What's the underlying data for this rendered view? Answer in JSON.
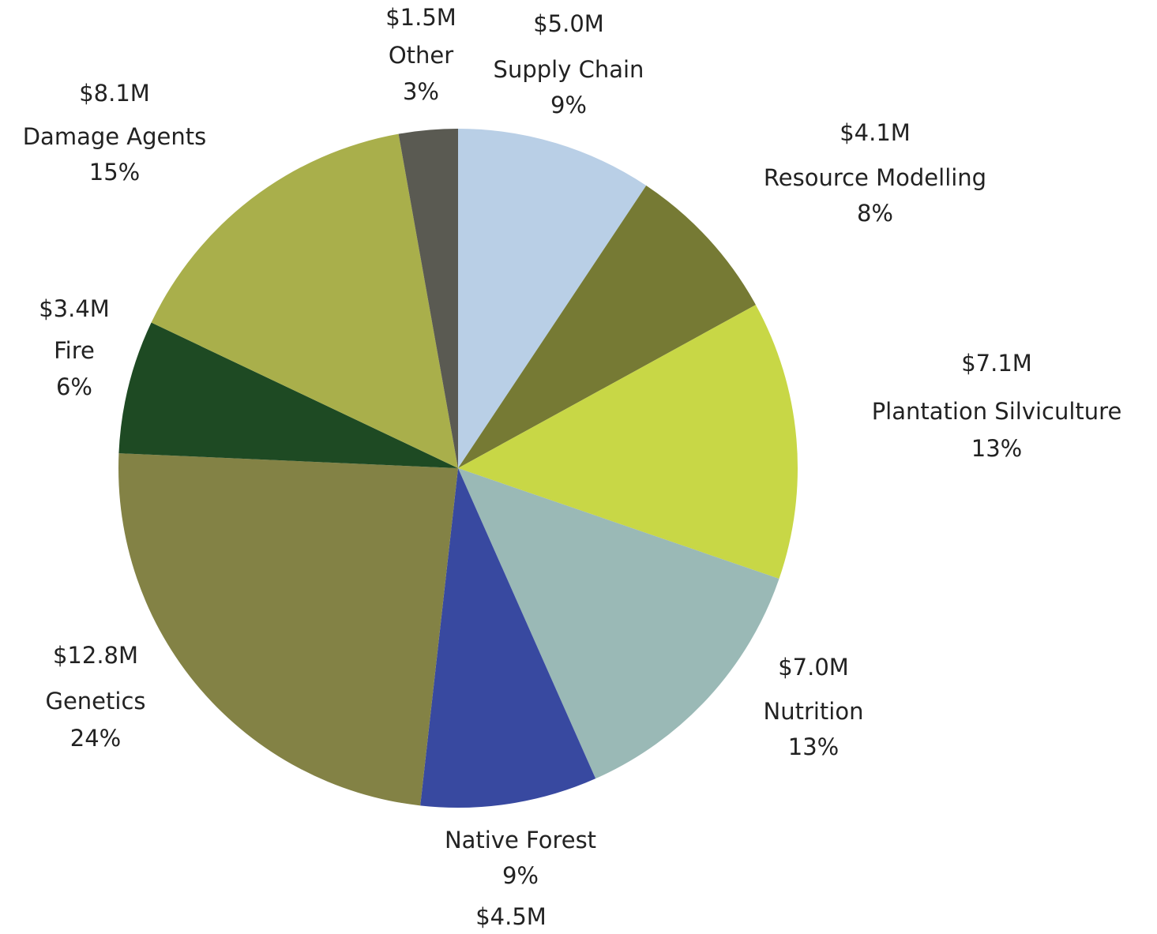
{
  "chart_data": {
    "type": "pie",
    "categories": [
      "Supply Chain",
      "Resource Modelling",
      "Plantation Silviculture",
      "Nutrition",
      "Native Forest",
      "Genetics",
      "Fire",
      "Damage Agents",
      "Other"
    ],
    "values": [
      5.0,
      4.1,
      7.1,
      7.0,
      4.5,
      12.8,
      3.4,
      8.1,
      1.5
    ],
    "value_labels": [
      "$5.0M",
      "$4.1M",
      "$7.1M",
      "$7.0M",
      "$4.5M",
      "$12.8M",
      "$3.4M",
      "$8.1M",
      "$1.5M"
    ],
    "percents": [
      9,
      8,
      13,
      13,
      9,
      24,
      6,
      15,
      3
    ],
    "percent_labels": [
      "9%",
      "8%",
      "13%",
      "13%",
      "9%",
      "24%",
      "6%",
      "15%",
      "3%"
    ],
    "colors": [
      "#b9cfe6",
      "#767a34",
      "#c8d746",
      "#9ab9b6",
      "#3849a0",
      "#838245",
      "#1e4a23",
      "#a9af4b",
      "#5a5a52"
    ]
  }
}
